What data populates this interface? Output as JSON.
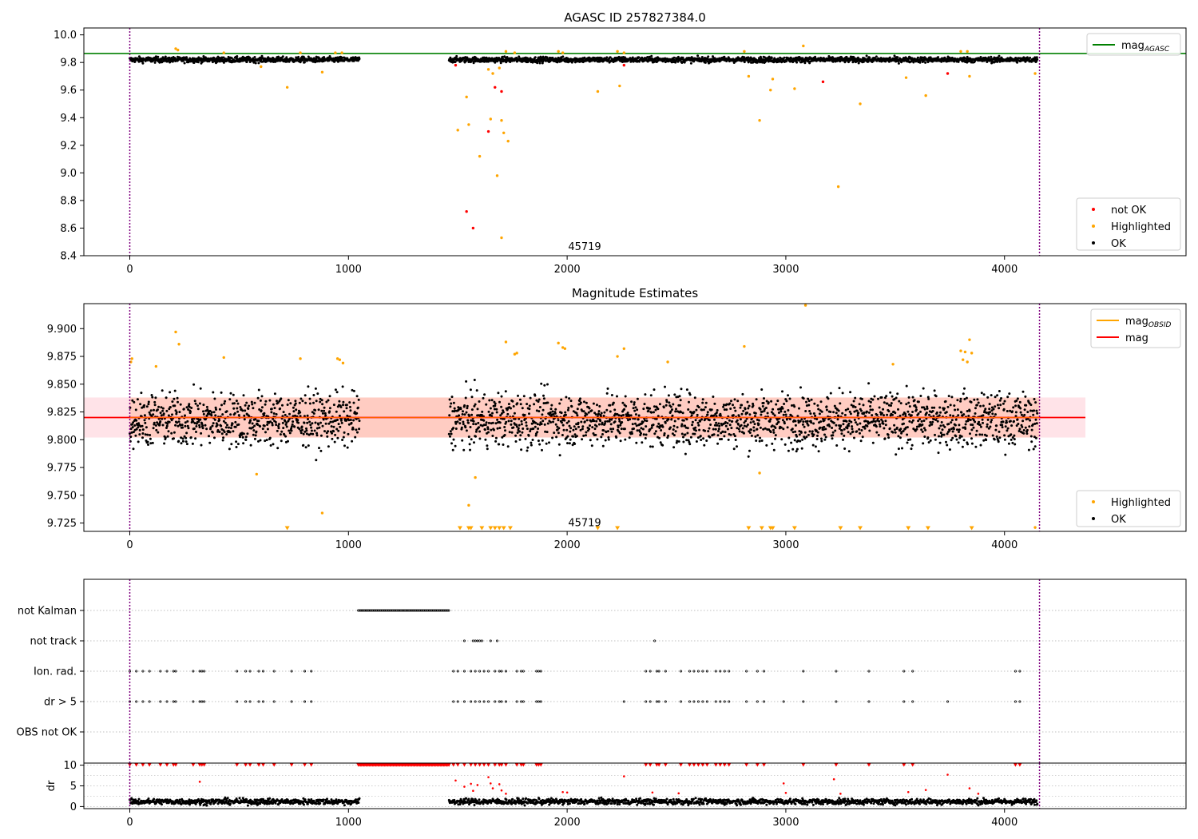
{
  "chart_data": [
    {
      "type": "scatter",
      "title": "AGASC ID 257827384.0",
      "xlabel": "",
      "ylabel": "",
      "xlim": [
        -210,
        4830
      ],
      "ylim": [
        8.4,
        10.05
      ],
      "xticks": [
        0,
        1000,
        2000,
        3000,
        4000
      ],
      "yticks": [
        8.4,
        8.6,
        8.8,
        9.0,
        9.2,
        9.4,
        9.6,
        9.8,
        10.0
      ],
      "hline": {
        "name": "mag_AGASC",
        "value": 9.865,
        "color": "#008000"
      },
      "vlines": [
        0,
        4160
      ],
      "text_label": {
        "text": "45719",
        "x": 2080,
        "y": 8.44
      },
      "legend_upper": [
        {
          "label": "mag",
          "sub": "AGASC",
          "color": "#008000",
          "kind": "line"
        }
      ],
      "legend_lower": [
        {
          "label": "not OK",
          "color": "#ff0000",
          "kind": "dot"
        },
        {
          "label": "Highlighted",
          "color": "#ffa500",
          "kind": "dot"
        },
        {
          "label": "OK",
          "color": "#000000",
          "kind": "dot"
        }
      ],
      "series": [
        {
          "name": "not OK",
          "color": "#ff0000",
          "points": [
            [
              1490,
              9.78
            ],
            [
              1540,
              8.72
            ],
            [
              1570,
              8.6
            ],
            [
              1640,
              9.3
            ],
            [
              1670,
              9.62
            ],
            [
              1700,
              9.59
            ],
            [
              2260,
              9.78
            ],
            [
              3170,
              9.66
            ],
            [
              3740,
              9.72
            ]
          ]
        },
        {
          "name": "Highlighted",
          "color": "#ffa500",
          "points": [
            [
              210,
              9.9
            ],
            [
              220,
              9.89
            ],
            [
              430,
              9.87
            ],
            [
              600,
              9.77
            ],
            [
              720,
              9.62
            ],
            [
              780,
              9.87
            ],
            [
              880,
              9.73
            ],
            [
              940,
              9.87
            ],
            [
              970,
              9.87
            ],
            [
              1500,
              9.31
            ],
            [
              1540,
              9.55
            ],
            [
              1550,
              9.35
            ],
            [
              1600,
              9.12
            ],
            [
              1640,
              9.75
            ],
            [
              1650,
              9.39
            ],
            [
              1660,
              9.72
            ],
            [
              1680,
              8.98
            ],
            [
              1690,
              9.76
            ],
            [
              1700,
              8.53
            ],
            [
              1700,
              9.38
            ],
            [
              1710,
              9.29
            ],
            [
              1720,
              9.88
            ],
            [
              1730,
              9.23
            ],
            [
              1760,
              9.87
            ],
            [
              1960,
              9.88
            ],
            [
              1980,
              9.87
            ],
            [
              2140,
              9.59
            ],
            [
              2230,
              9.88
            ],
            [
              2240,
              9.63
            ],
            [
              2260,
              9.87
            ],
            [
              2810,
              9.88
            ],
            [
              2830,
              9.7
            ],
            [
              2880,
              9.38
            ],
            [
              2930,
              9.6
            ],
            [
              2940,
              9.68
            ],
            [
              3040,
              9.61
            ],
            [
              3080,
              9.92
            ],
            [
              3240,
              8.9
            ],
            [
              3340,
              9.5
            ],
            [
              3550,
              9.69
            ],
            [
              3640,
              9.56
            ],
            [
              3800,
              9.88
            ],
            [
              3830,
              9.88
            ],
            [
              3840,
              9.7
            ],
            [
              4140,
              9.72
            ]
          ]
        }
      ],
      "ok_series": {
        "name": "OK",
        "color": "#000000",
        "center": 9.82,
        "spread": 0.014,
        "segments": [
          [
            0,
            1050
          ],
          [
            1460,
            4150
          ]
        ]
      }
    },
    {
      "type": "scatter",
      "title": "Magnitude Estimates",
      "xlabel": "",
      "ylabel": "",
      "xlim": [
        -210,
        4830
      ],
      "ylim": [
        9.7175,
        9.9225
      ],
      "xticks": [
        0,
        1000,
        2000,
        3000,
        4000
      ],
      "yticks": [
        9.725,
        9.75,
        9.775,
        9.8,
        9.825,
        9.85,
        9.875,
        9.9
      ],
      "ytick_labels": [
        "9.725",
        "9.750",
        "9.775",
        "9.800",
        "9.825",
        "9.850",
        "9.875",
        "9.900"
      ],
      "mag_line": {
        "name": "mag",
        "value": 9.82,
        "color": "#ff0000"
      },
      "band": {
        "low": 9.802,
        "high": 9.838,
        "xmax": 4370
      },
      "vlines": [
        0,
        4160
      ],
      "text_label": {
        "text": "45719",
        "x": 2080,
        "y": 9.722
      },
      "legend_upper": [
        {
          "label": "mag",
          "sub": "OBSID",
          "color": "#ffa500",
          "kind": "line"
        },
        {
          "label": "mag",
          "sub": "",
          "color": "#ff0000",
          "kind": "line"
        }
      ],
      "legend_lower": [
        {
          "label": "Highlighted",
          "color": "#ffa500",
          "kind": "dot"
        },
        {
          "label": "OK",
          "color": "#000000",
          "kind": "dot"
        }
      ],
      "series": [
        {
          "name": "Highlighted",
          "color": "#ffa500",
          "points": [
            [
              5,
              9.87
            ],
            [
              10,
              9.873
            ],
            [
              120,
              9.866
            ],
            [
              210,
              9.897
            ],
            [
              225,
              9.886
            ],
            [
              430,
              9.874
            ],
            [
              580,
              9.769
            ],
            [
              780,
              9.873
            ],
            [
              880,
              9.734
            ],
            [
              950,
              9.873
            ],
            [
              960,
              9.872
            ],
            [
              975,
              9.869
            ],
            [
              1550,
              9.741
            ],
            [
              1580,
              9.766
            ],
            [
              1720,
              9.888
            ],
            [
              1760,
              9.877
            ],
            [
              1770,
              9.878
            ],
            [
              1960,
              9.887
            ],
            [
              1980,
              9.883
            ],
            [
              1990,
              9.882
            ],
            [
              2230,
              9.875
            ],
            [
              2260,
              9.882
            ],
            [
              2460,
              9.87
            ],
            [
              2810,
              9.884
            ],
            [
              2880,
              9.77
            ],
            [
              3090,
              9.921
            ],
            [
              3490,
              9.868
            ],
            [
              3800,
              9.88
            ],
            [
              3810,
              9.872
            ],
            [
              3820,
              9.879
            ],
            [
              3830,
              9.87
            ],
            [
              3840,
              9.89
            ],
            [
              3850,
              9.878
            ],
            [
              4140,
              9.721
            ]
          ]
        },
        {
          "name": "Highlighted (clipped)",
          "color": "#ffa500",
          "marker": "triangle-down",
          "points": [
            [
              720,
              9.72
            ],
            [
              1510,
              9.72
            ],
            [
              1550,
              9.72
            ],
            [
              1560,
              9.72
            ],
            [
              1610,
              9.72
            ],
            [
              1650,
              9.72
            ],
            [
              1670,
              9.72
            ],
            [
              1690,
              9.72
            ],
            [
              1710,
              9.72
            ],
            [
              1740,
              9.72
            ],
            [
              2140,
              9.72
            ],
            [
              2230,
              9.72
            ],
            [
              2830,
              9.72
            ],
            [
              2890,
              9.72
            ],
            [
              2930,
              9.72
            ],
            [
              2940,
              9.72
            ],
            [
              3040,
              9.72
            ],
            [
              3250,
              9.72
            ],
            [
              3340,
              9.72
            ],
            [
              3560,
              9.72
            ],
            [
              3650,
              9.72
            ],
            [
              3850,
              9.72
            ]
          ]
        }
      ],
      "ok_series": {
        "name": "OK",
        "color": "#000000",
        "center": 9.818,
        "spread": 0.017,
        "segments": [
          [
            0,
            1050
          ],
          [
            1460,
            4150
          ]
        ]
      }
    },
    {
      "type": "scatter",
      "title": "",
      "categories": [
        "not Kalman",
        "not track",
        "Ion. rad.",
        "dr > 5",
        "OBS not OK"
      ],
      "xlim": [
        -210,
        4830
      ],
      "vlines": [
        0,
        4160
      ],
      "flags": [
        {
          "name": "not Kalman",
          "segments": [
            [
              1045,
              1460
            ]
          ],
          "points": []
        },
        {
          "name": "not track",
          "segments": [],
          "points": [
            1530,
            1570,
            1580,
            1590,
            1600,
            1610,
            1650,
            1680,
            2400
          ]
        },
        {
          "name": "Ion. rad.",
          "segments": [],
          "points": [
            0,
            30,
            60,
            90,
            140,
            170,
            200,
            210,
            290,
            320,
            330,
            340,
            490,
            530,
            550,
            590,
            610,
            660,
            740,
            800,
            830,
            1480,
            1500,
            1530,
            1560,
            1580,
            1600,
            1620,
            1640,
            1670,
            1690,
            1700,
            1720,
            1770,
            1790,
            1800,
            1860,
            1870,
            1880,
            2360,
            2380,
            2410,
            2420,
            2450,
            2520,
            2560,
            2580,
            2600,
            2620,
            2640,
            2680,
            2700,
            2720,
            2740,
            2820,
            2870,
            2900,
            3080,
            3230,
            3380,
            3540,
            3580,
            4050,
            4070
          ]
        },
        {
          "name": "dr > 5",
          "segments": [],
          "points": [
            0,
            30,
            60,
            90,
            140,
            170,
            200,
            210,
            290,
            320,
            330,
            340,
            490,
            530,
            550,
            590,
            610,
            660,
            740,
            800,
            830,
            1480,
            1500,
            1530,
            1560,
            1580,
            1600,
            1620,
            1640,
            1670,
            1690,
            1700,
            1720,
            1770,
            1790,
            1800,
            1860,
            1870,
            1880,
            2260,
            2360,
            2380,
            2410,
            2420,
            2450,
            2520,
            2560,
            2580,
            2600,
            2620,
            2640,
            2680,
            2700,
            2720,
            2740,
            2820,
            2870,
            2900,
            2990,
            3080,
            3230,
            3380,
            3540,
            3580,
            3740,
            4050,
            4070
          ]
        },
        {
          "name": "OBS not OK",
          "segments": [],
          "points": []
        }
      ]
    },
    {
      "type": "scatter",
      "title": "",
      "ylabel": "dr",
      "xlim": [
        -210,
        4830
      ],
      "ylim": [
        -0.5,
        10.5
      ],
      "xticks": [
        0,
        1000,
        2000,
        3000,
        4000
      ],
      "yticks": [
        0,
        5,
        10
      ],
      "vlines": [
        0,
        4160
      ],
      "dr_base": {
        "center": 1.2,
        "spread": 0.5,
        "segments": [
          [
            0,
            1050
          ],
          [
            1460,
            4150
          ]
        ]
      },
      "dr_capped_segment": [
        1045,
        1460
      ],
      "dr_capped_points": [
        0,
        30,
        60,
        90,
        140,
        170,
        200,
        210,
        290,
        320,
        330,
        340,
        490,
        530,
        550,
        590,
        610,
        660,
        740,
        800,
        830,
        1480,
        1500,
        1530,
        1560,
        1580,
        1600,
        1620,
        1640,
        1670,
        1690,
        1700,
        1720,
        1770,
        1790,
        1800,
        1860,
        1870,
        1880,
        2360,
        2380,
        2410,
        2420,
        2450,
        2520,
        2560,
        2580,
        2600,
        2620,
        2640,
        2680,
        2700,
        2720,
        2740,
        2820,
        2870,
        2900,
        3080,
        3230,
        3380,
        3540,
        3580,
        4050,
        4070
      ],
      "dr_mid_points": [
        [
          320,
          6
        ],
        [
          1490,
          6.3
        ],
        [
          1530,
          4.8
        ],
        [
          1560,
          5.5
        ],
        [
          1570,
          3.8
        ],
        [
          1590,
          5.2
        ],
        [
          1640,
          7.1
        ],
        [
          1650,
          5.6
        ],
        [
          1660,
          4.4
        ],
        [
          1690,
          5.4
        ],
        [
          1700,
          3.9
        ],
        [
          1720,
          3.1
        ],
        [
          1980,
          3.5
        ],
        [
          2000,
          3.4
        ],
        [
          2260,
          7.3
        ],
        [
          2390,
          3.4
        ],
        [
          2510,
          3.2
        ],
        [
          2990,
          5.6
        ],
        [
          3000,
          3.3
        ],
        [
          3220,
          6.6
        ],
        [
          3250,
          3.1
        ],
        [
          3560,
          3.5
        ],
        [
          3640,
          4
        ],
        [
          3740,
          7.7
        ],
        [
          3840,
          4.4
        ],
        [
          3880,
          3.1
        ]
      ]
    }
  ]
}
